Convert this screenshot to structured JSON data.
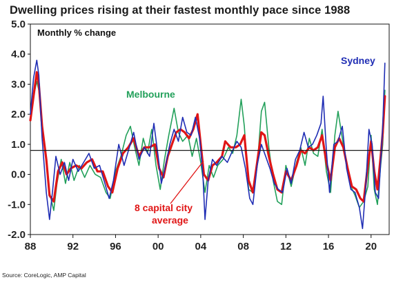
{
  "title": "Dwelling prices rising at their fastest monthly pace since 1988",
  "source": "Source: CoreLogic, AMP Capital",
  "colors": {
    "sydney": "#1f2db4",
    "melbourne": "#22a05a",
    "average": "#e01515",
    "reference_line": "#1a1a1a"
  },
  "chart_data": {
    "type": "line",
    "ylabel": "Monthly % change",
    "xlim": [
      1988.0,
      2021.7
    ],
    "ylim": [
      -2.0,
      5.0
    ],
    "grid": false,
    "x_tick_values": [
      1988,
      1992,
      1996,
      2000,
      2004,
      2008,
      2012,
      2016,
      2020
    ],
    "x_tick_labels": [
      "88",
      "92",
      "96",
      "00",
      "04",
      "08",
      "12",
      "16",
      "20"
    ],
    "y_tick_values": [
      -2,
      -1,
      0,
      1,
      2,
      3,
      4,
      5
    ],
    "y_tick_labels": [
      "-2.0",
      "-1.0",
      "0.0",
      "1.0",
      "2.0",
      "3.0",
      "4.0",
      "5.0"
    ],
    "reference_line": 0.8,
    "annotations": [
      {
        "text": "Sydney",
        "series": "Sydney"
      },
      {
        "text": "Melbourne",
        "series": "Melbourne"
      },
      {
        "text": "8 capital city",
        "series": "8 capital city average"
      },
      {
        "text": "average",
        "series": "8 capital city average"
      }
    ],
    "series": [
      {
        "name": "Sydney",
        "color": "#1f2db4",
        "points": [
          [
            1988.0,
            2.0
          ],
          [
            1988.3,
            3.2
          ],
          [
            1988.6,
            3.8
          ],
          [
            1988.8,
            3.3
          ],
          [
            1989.1,
            1.2
          ],
          [
            1989.5,
            -0.6
          ],
          [
            1989.8,
            -1.5
          ],
          [
            1990.1,
            -0.5
          ],
          [
            1990.4,
            0.6
          ],
          [
            1990.8,
            0.0
          ],
          [
            1991.2,
            0.4
          ],
          [
            1991.6,
            -0.2
          ],
          [
            1992.0,
            0.5
          ],
          [
            1992.5,
            0.1
          ],
          [
            1993.0,
            0.4
          ],
          [
            1993.5,
            0.7
          ],
          [
            1994.0,
            0.2
          ],
          [
            1994.5,
            0.3
          ],
          [
            1995.0,
            -0.3
          ],
          [
            1995.4,
            -0.8
          ],
          [
            1995.8,
            -0.2
          ],
          [
            1996.3,
            1.0
          ],
          [
            1996.8,
            0.3
          ],
          [
            1997.3,
            0.9
          ],
          [
            1997.7,
            1.4
          ],
          [
            1998.2,
            0.5
          ],
          [
            1998.7,
            0.9
          ],
          [
            1999.2,
            0.6
          ],
          [
            1999.6,
            1.7
          ],
          [
            2000.0,
            0.6
          ],
          [
            2000.3,
            -0.3
          ],
          [
            2000.7,
            0.3
          ],
          [
            2001.1,
            1.0
          ],
          [
            2001.5,
            1.5
          ],
          [
            2001.9,
            1.1
          ],
          [
            2002.3,
            1.9
          ],
          [
            2002.7,
            1.4
          ],
          [
            2003.1,
            1.3
          ],
          [
            2003.5,
            1.9
          ],
          [
            2003.9,
            1.2
          ],
          [
            2004.2,
            0.0
          ],
          [
            2004.4,
            -1.5
          ],
          [
            2004.7,
            -0.2
          ],
          [
            2005.1,
            0.5
          ],
          [
            2005.5,
            0.3
          ],
          [
            2006.0,
            0.6
          ],
          [
            2006.5,
            0.4
          ],
          [
            2007.0,
            0.8
          ],
          [
            2007.4,
            1.1
          ],
          [
            2007.8,
            0.9
          ],
          [
            2008.2,
            0.2
          ],
          [
            2008.6,
            -0.8
          ],
          [
            2008.9,
            -1.0
          ],
          [
            2009.3,
            0.3
          ],
          [
            2009.7,
            1.0
          ],
          [
            2010.1,
            0.6
          ],
          [
            2010.5,
            0.2
          ],
          [
            2010.9,
            -0.3
          ],
          [
            2011.3,
            -0.5
          ],
          [
            2011.7,
            -0.6
          ],
          [
            2012.1,
            0.2
          ],
          [
            2012.5,
            -0.3
          ],
          [
            2012.9,
            0.5
          ],
          [
            2013.3,
            0.8
          ],
          [
            2013.7,
            1.4
          ],
          [
            2014.1,
            0.9
          ],
          [
            2014.5,
            1.0
          ],
          [
            2014.9,
            1.3
          ],
          [
            2015.3,
            1.7
          ],
          [
            2015.5,
            2.6
          ],
          [
            2015.8,
            0.8
          ],
          [
            2016.1,
            -0.6
          ],
          [
            2016.5,
            1.0
          ],
          [
            2016.9,
            1.1
          ],
          [
            2017.3,
            1.6
          ],
          [
            2017.7,
            0.2
          ],
          [
            2018.1,
            -0.5
          ],
          [
            2018.5,
            -0.6
          ],
          [
            2018.9,
            -1.1
          ],
          [
            2019.2,
            -1.8
          ],
          [
            2019.5,
            -0.4
          ],
          [
            2019.8,
            1.5
          ],
          [
            2020.1,
            1.0
          ],
          [
            2020.4,
            -0.6
          ],
          [
            2020.7,
            -0.8
          ],
          [
            2020.9,
            0.4
          ],
          [
            2021.1,
            1.6
          ],
          [
            2021.3,
            3.7
          ]
        ]
      },
      {
        "name": "Melbourne",
        "color": "#22a05a",
        "points": [
          [
            1988.0,
            1.8
          ],
          [
            1988.3,
            2.6
          ],
          [
            1988.6,
            3.1
          ],
          [
            1988.8,
            2.8
          ],
          [
            1989.1,
            1.7
          ],
          [
            1989.5,
            0.4
          ],
          [
            1989.8,
            -0.6
          ],
          [
            1990.2,
            -1.2
          ],
          [
            1990.5,
            -0.3
          ],
          [
            1990.9,
            0.5
          ],
          [
            1991.3,
            -0.3
          ],
          [
            1991.7,
            0.4
          ],
          [
            1992.1,
            -0.2
          ],
          [
            1992.6,
            0.3
          ],
          [
            1993.1,
            -0.1
          ],
          [
            1993.6,
            0.3
          ],
          [
            1994.1,
            0.0
          ],
          [
            1994.6,
            -0.1
          ],
          [
            1995.1,
            -0.6
          ],
          [
            1995.5,
            -0.8
          ],
          [
            1996.0,
            0.1
          ],
          [
            1996.5,
            0.6
          ],
          [
            1997.0,
            1.3
          ],
          [
            1997.4,
            1.6
          ],
          [
            1997.8,
            0.9
          ],
          [
            1998.2,
            0.3
          ],
          [
            1998.6,
            1.2
          ],
          [
            1999.0,
            0.7
          ],
          [
            1999.4,
            1.5
          ],
          [
            1999.8,
            0.3
          ],
          [
            2000.2,
            -0.5
          ],
          [
            2000.6,
            0.5
          ],
          [
            2001.0,
            1.3
          ],
          [
            2001.5,
            2.2
          ],
          [
            2001.9,
            1.4
          ],
          [
            2002.3,
            1.1
          ],
          [
            2002.8,
            1.3
          ],
          [
            2003.2,
            0.6
          ],
          [
            2003.6,
            1.2
          ],
          [
            2004.0,
            0.4
          ],
          [
            2004.4,
            -0.6
          ],
          [
            2004.8,
            0.3
          ],
          [
            2005.2,
            -0.1
          ],
          [
            2005.6,
            0.3
          ],
          [
            2006.1,
            0.5
          ],
          [
            2006.6,
            0.9
          ],
          [
            2007.0,
            0.7
          ],
          [
            2007.4,
            1.3
          ],
          [
            2007.8,
            2.5
          ],
          [
            2008.1,
            1.6
          ],
          [
            2008.5,
            -0.5
          ],
          [
            2008.9,
            -0.6
          ],
          [
            2009.4,
            0.7
          ],
          [
            2009.7,
            2.1
          ],
          [
            2010.0,
            2.4
          ],
          [
            2010.4,
            0.9
          ],
          [
            2010.8,
            -0.2
          ],
          [
            2011.2,
            -0.9
          ],
          [
            2011.6,
            -1.0
          ],
          [
            2012.0,
            0.3
          ],
          [
            2012.5,
            -0.4
          ],
          [
            2013.0,
            0.4
          ],
          [
            2013.4,
            0.9
          ],
          [
            2013.8,
            0.3
          ],
          [
            2014.2,
            1.2
          ],
          [
            2014.6,
            0.7
          ],
          [
            2015.0,
            0.6
          ],
          [
            2015.4,
            1.5
          ],
          [
            2015.8,
            0.1
          ],
          [
            2016.2,
            -0.6
          ],
          [
            2016.6,
            1.3
          ],
          [
            2016.9,
            2.1
          ],
          [
            2017.3,
            1.2
          ],
          [
            2017.7,
            0.3
          ],
          [
            2018.1,
            -0.4
          ],
          [
            2018.5,
            -0.7
          ],
          [
            2018.9,
            -1.1
          ],
          [
            2019.3,
            -0.9
          ],
          [
            2019.7,
            -0.4
          ],
          [
            2020.0,
            1.3
          ],
          [
            2020.3,
            -0.5
          ],
          [
            2020.6,
            -1.0
          ],
          [
            2020.9,
            0.3
          ],
          [
            2021.1,
            1.0
          ],
          [
            2021.3,
            2.8
          ]
        ]
      },
      {
        "name": "8 capital city average",
        "color": "#e01515",
        "points": [
          [
            1988.0,
            1.8
          ],
          [
            1988.3,
            2.6
          ],
          [
            1988.6,
            3.4
          ],
          [
            1988.8,
            3.0
          ],
          [
            1989.1,
            1.6
          ],
          [
            1989.5,
            0.5
          ],
          [
            1989.8,
            -0.7
          ],
          [
            1990.2,
            -0.9
          ],
          [
            1990.6,
            0.1
          ],
          [
            1991.0,
            0.4
          ],
          [
            1991.4,
            0.0
          ],
          [
            1991.8,
            0.2
          ],
          [
            1992.3,
            0.3
          ],
          [
            1992.8,
            0.2
          ],
          [
            1993.3,
            0.4
          ],
          [
            1993.8,
            0.5
          ],
          [
            1994.3,
            0.1
          ],
          [
            1994.8,
            0.1
          ],
          [
            1995.3,
            -0.4
          ],
          [
            1995.7,
            -0.6
          ],
          [
            1996.2,
            0.2
          ],
          [
            1996.7,
            0.7
          ],
          [
            1997.2,
            0.9
          ],
          [
            1997.7,
            1.2
          ],
          [
            1998.2,
            0.6
          ],
          [
            1998.7,
            0.9
          ],
          [
            1999.2,
            0.9
          ],
          [
            1999.7,
            1.0
          ],
          [
            2000.1,
            0.2
          ],
          [
            2000.5,
            -0.1
          ],
          [
            2000.9,
            0.6
          ],
          [
            2001.3,
            1.0
          ],
          [
            2001.7,
            1.4
          ],
          [
            2002.1,
            1.5
          ],
          [
            2002.5,
            1.4
          ],
          [
            2002.9,
            1.2
          ],
          [
            2003.3,
            1.5
          ],
          [
            2003.7,
            2.0
          ],
          [
            2004.0,
            1.0
          ],
          [
            2004.3,
            0.0
          ],
          [
            2004.7,
            -0.2
          ],
          [
            2005.1,
            0.3
          ],
          [
            2005.5,
            0.4
          ],
          [
            2006.0,
            0.6
          ],
          [
            2006.3,
            1.1
          ],
          [
            2006.8,
            0.9
          ],
          [
            2007.3,
            0.9
          ],
          [
            2007.7,
            1.0
          ],
          [
            2008.1,
            1.3
          ],
          [
            2008.5,
            -0.2
          ],
          [
            2008.9,
            -0.6
          ],
          [
            2009.3,
            0.4
          ],
          [
            2009.7,
            1.4
          ],
          [
            2010.0,
            1.3
          ],
          [
            2010.4,
            0.6
          ],
          [
            2010.8,
            0.0
          ],
          [
            2011.2,
            -0.5
          ],
          [
            2011.6,
            -0.6
          ],
          [
            2012.0,
            0.1
          ],
          [
            2012.5,
            -0.2
          ],
          [
            2013.0,
            0.3
          ],
          [
            2013.4,
            0.8
          ],
          [
            2013.8,
            0.7
          ],
          [
            2014.2,
            0.9
          ],
          [
            2014.6,
            0.8
          ],
          [
            2015.0,
            0.9
          ],
          [
            2015.4,
            1.3
          ],
          [
            2015.8,
            0.4
          ],
          [
            2016.2,
            -0.2
          ],
          [
            2016.6,
            0.9
          ],
          [
            2017.0,
            1.2
          ],
          [
            2017.4,
            0.9
          ],
          [
            2017.8,
            0.2
          ],
          [
            2018.2,
            -0.4
          ],
          [
            2018.6,
            -0.5
          ],
          [
            2019.0,
            -0.8
          ],
          [
            2019.3,
            -0.9
          ],
          [
            2019.7,
            0.3
          ],
          [
            2020.0,
            1.1
          ],
          [
            2020.3,
            0.1
          ],
          [
            2020.6,
            -0.5
          ],
          [
            2020.9,
            0.6
          ],
          [
            2021.1,
            1.4
          ],
          [
            2021.3,
            2.6
          ]
        ]
      }
    ]
  }
}
